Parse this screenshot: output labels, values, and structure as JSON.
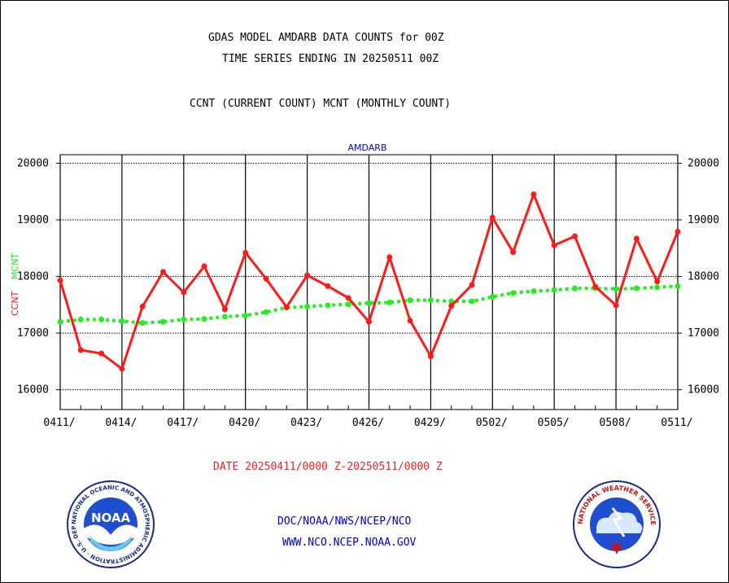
{
  "header": {
    "line1": "GDAS MODEL AMDARB DATA COUNTS for 00Z",
    "line2": "TIME SERIES ENDING IN 20250511 00Z",
    "line3": "CCNT (CURRENT COUNT) MCNT (MONTHLY COUNT)"
  },
  "footer": {
    "date_range": "DATE 20250411/0000 Z-20250511/0000 Z",
    "org": "DOC/NOAA/NWS/NCEP/NCO",
    "url": "WWW.NCO.NCEP.NOAA.GOV"
  },
  "logos": {
    "noaa": {
      "center_text": "NOAA",
      "ring_text": "NATIONAL OCEANIC AND ATMOSPHERIC ADMINISTRATION · U.S. DEPARTMENT OF COMMERCE"
    },
    "nws": {
      "ring_text": "NATIONAL WEATHER SERVICE"
    }
  },
  "colors": {
    "ccnt": "#ff1a1a",
    "mcnt": "#22ee22",
    "series_title": "#0000cc",
    "footer_text": "#0000cc",
    "date_text": "#ff1a1a"
  },
  "chart_data": {
    "type": "line",
    "title": "AMDARB",
    "ylabel": "CCNT  MCNT",
    "ylabel_parts": [
      "CCNT",
      "MCNT"
    ],
    "ylim": [
      15650,
      20150
    ],
    "yticks": [
      16000,
      17000,
      18000,
      19000,
      20000
    ],
    "ytick_labels": [
      "16000",
      "17000",
      "18000",
      "19000",
      "20000"
    ],
    "x": [
      "0411",
      "0412",
      "0413",
      "0414",
      "0415",
      "0416",
      "0417",
      "0418",
      "0419",
      "0420",
      "0421",
      "0422",
      "0423",
      "0424",
      "0425",
      "0426",
      "0427",
      "0428",
      "0429",
      "0430",
      "0501",
      "0502",
      "0503",
      "0504",
      "0505",
      "0506",
      "0507",
      "0508",
      "0509",
      "0510",
      "0511"
    ],
    "xtick_labels": [
      "0411/",
      "0414/",
      "0417/",
      "0420/",
      "0423/",
      "0426/",
      "0429/",
      "0502/",
      "0505/",
      "0508/",
      "0511/"
    ],
    "grid": true,
    "series": [
      {
        "name": "CCNT",
        "values": [
          17930,
          16700,
          16640,
          16370,
          17470,
          18080,
          17720,
          18180,
          17420,
          18420,
          17960,
          17460,
          18020,
          17830,
          17620,
          17200,
          18340,
          17220,
          16590,
          17480,
          17850,
          19040,
          18430,
          19450,
          18550,
          18710,
          17820,
          17490,
          18670,
          17910,
          18790
        ]
      },
      {
        "name": "MCNT",
        "values": [
          17200,
          17240,
          17240,
          17210,
          17180,
          17200,
          17240,
          17250,
          17290,
          17310,
          17370,
          17450,
          17470,
          17490,
          17510,
          17530,
          17540,
          17580,
          17580,
          17560,
          17560,
          17640,
          17710,
          17740,
          17760,
          17790,
          17790,
          17780,
          17790,
          17810,
          17830
        ]
      }
    ]
  }
}
